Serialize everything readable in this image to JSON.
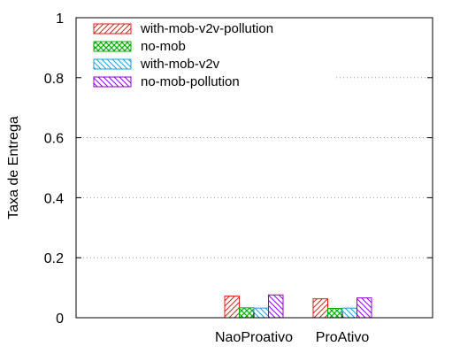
{
  "chart_data": {
    "type": "bar",
    "ylabel": "Taxa de Entrega",
    "xlabel": "",
    "ylim": [
      0,
      1
    ],
    "yticks": [
      0,
      0.2,
      0.4,
      0.6,
      0.8,
      1
    ],
    "ytick_labels": [
      "0",
      "0.2",
      "0.4",
      "0.6",
      "0.8",
      "1"
    ],
    "grid": "horizontal dotted",
    "legend_position": "top-left",
    "categories": [
      "NaoProativo",
      "ProAtivo"
    ],
    "series": [
      {
        "name": "with-mob-v2v-pollution",
        "color": "#e41a1c",
        "pattern": "diag-up",
        "values": [
          0.072,
          0.063
        ]
      },
      {
        "name": "no-mob",
        "color": "#00b000",
        "pattern": "crosshatch",
        "values": [
          0.033,
          0.031
        ]
      },
      {
        "name": "with-mob-v2v",
        "color": "#1a9fd8",
        "pattern": "diag-down",
        "values": [
          0.032,
          0.032
        ]
      },
      {
        "name": "no-mob-pollution",
        "color": "#9400d3",
        "pattern": "diag-down",
        "values": [
          0.076,
          0.066
        ]
      }
    ]
  }
}
